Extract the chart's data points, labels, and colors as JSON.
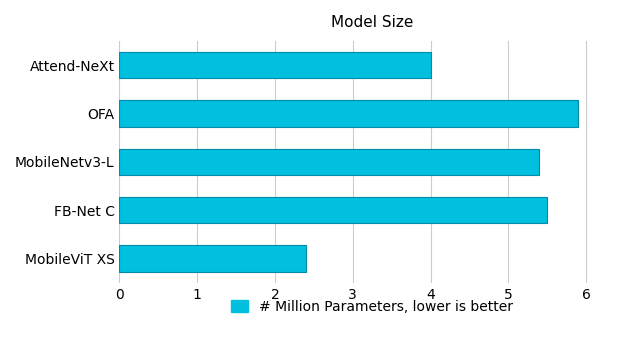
{
  "title": "Model Size",
  "categories": [
    "Attend-NeXt",
    "OFA",
    "MobileNetv3-L",
    "FB-Net C",
    "MobileViT XS"
  ],
  "values": [
    4.0,
    5.9,
    5.4,
    5.5,
    2.4
  ],
  "bar_color": "#00BFDF",
  "bar_edge_color": "#008BAA",
  "xlim": [
    0,
    6.5
  ],
  "xticks": [
    0,
    1,
    2,
    3,
    4,
    5,
    6
  ],
  "legend_label": "# Million Parameters, lower is better",
  "title_fontsize": 11,
  "tick_fontsize": 10,
  "legend_fontsize": 10,
  "background_color": "#ffffff",
  "grid_color": "#cccccc"
}
